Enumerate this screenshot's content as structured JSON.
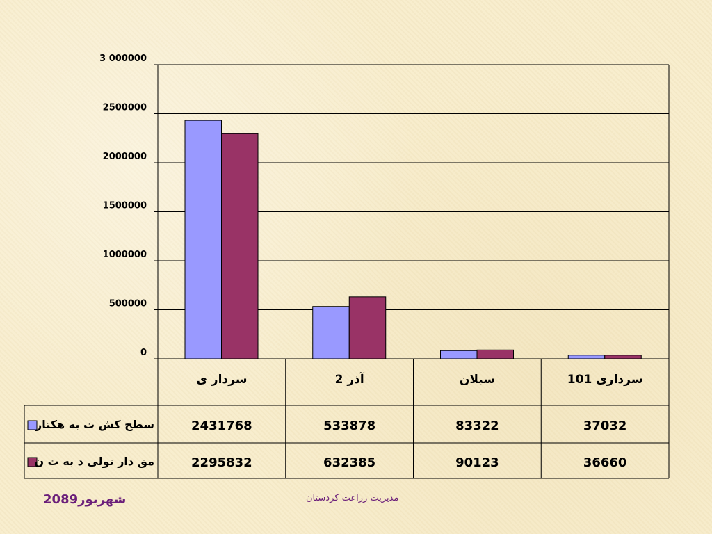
{
  "chart_data": {
    "type": "bar",
    "categories": [
      "سردار ی",
      "آذر  2",
      "سبلان",
      "سرداری  101"
    ],
    "series": [
      {
        "name": "سطح کش ت به هکتار",
        "color": "#9999ff",
        "values": [
          2431768,
          533878,
          83322,
          37032
        ]
      },
      {
        "name": "مق دار تولی د به ت ن",
        "color": "#993366",
        "values": [
          2295832,
          632385,
          90123,
          36660
        ]
      }
    ],
    "yticks": [
      "0",
      "500000",
      "1000000",
      "1500000",
      "2000000",
      "2500000",
      "3 000000"
    ],
    "ylim": [
      0,
      3000000
    ],
    "grid": true,
    "legend": "data-table-left",
    "table_values": [
      [
        "2431768",
        "533878",
        "83322",
        "37032"
      ],
      [
        "2295832",
        "632385",
        "90123",
        "36660"
      ]
    ]
  },
  "footer": {
    "date": "20شهریور89",
    "center": "مدیریت زراعت کردستان"
  }
}
